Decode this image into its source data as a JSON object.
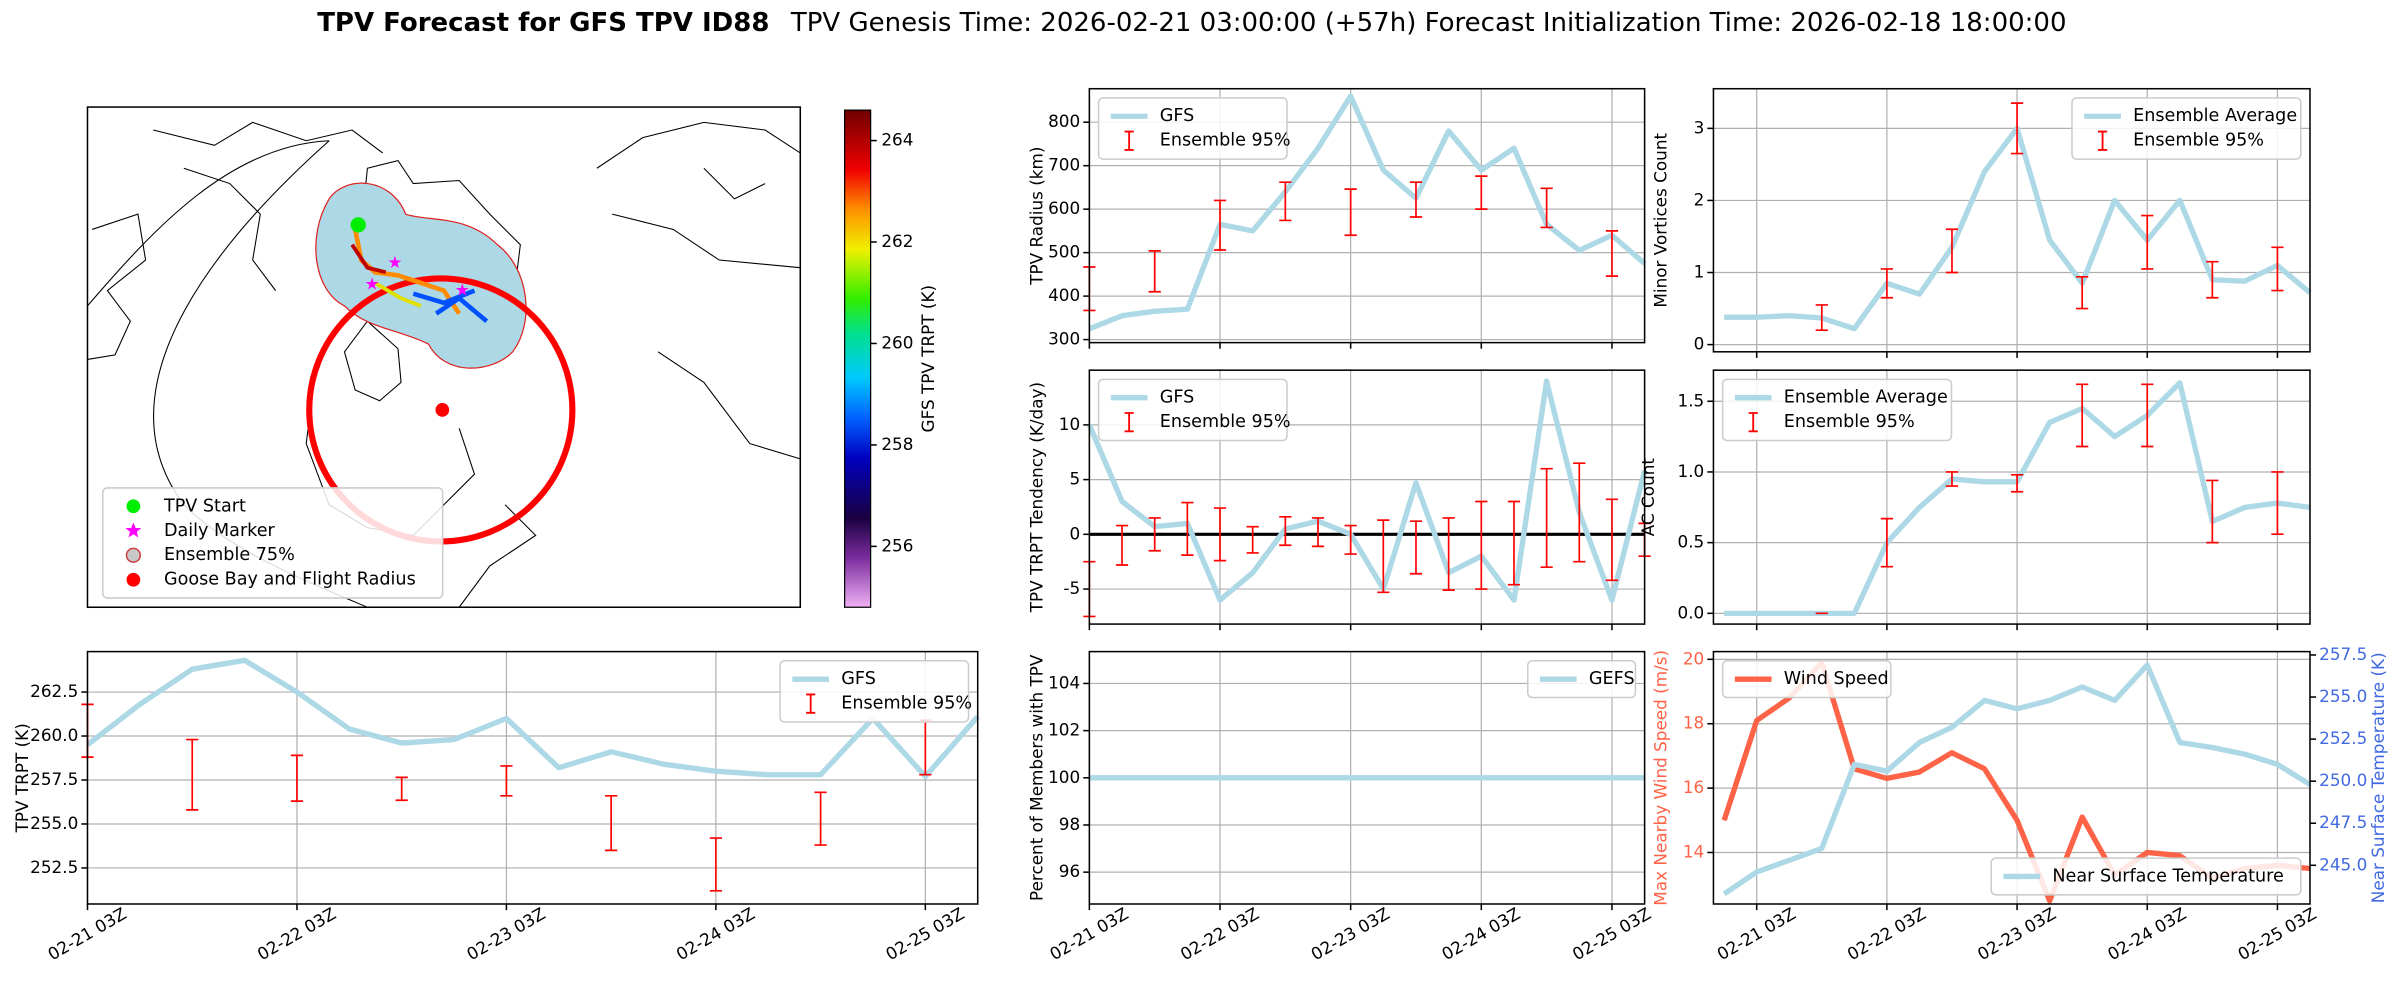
{
  "figure": {
    "title": "TPV Forecast for GFS TPV ID88",
    "subtitle": "TPV Genesis Time: 2026-02-21 03:00:00 (+57h)   Forecast Initialization Time: 2026-02-18 18:00:00"
  },
  "chart_data": [
    {
      "type": "map",
      "legend": [
        {
          "label": "TPV Start",
          "color": "#00ee00",
          "marker": "circle"
        },
        {
          "label": "Daily Marker",
          "color": "#ff00ff",
          "marker": "star"
        },
        {
          "label": "Ensemble 75%",
          "color": "#c8c8c8",
          "marker": "ring"
        },
        {
          "label": "Goose Bay and Flight Radius",
          "color": "#ff0000",
          "marker": "circle"
        }
      ],
      "colorbar": {
        "label": "GFS TPV TRPT (K)",
        "clim": [
          254.8,
          264.6
        ],
        "ticks": [
          256,
          258,
          260,
          262,
          264
        ]
      }
    },
    {
      "type": "line",
      "ylabel": "TPV TRPT (K)",
      "categories": [
        "02-21 03Z",
        null,
        null,
        null,
        "02-22 03Z",
        null,
        null,
        null,
        "02-23 03Z",
        null,
        null,
        null,
        "02-24 03Z",
        null,
        null,
        null,
        "02-25 03Z",
        null
      ],
      "series": [
        {
          "name": "GFS",
          "color": "#add8e6",
          "values": [
            259.5,
            261.8,
            263.8,
            264.3,
            262.5,
            260.4,
            259.6,
            259.8,
            261.0,
            258.2,
            259.1,
            258.4,
            258.0,
            257.8,
            257.8,
            261.0,
            257.7,
            261.1
          ]
        },
        {
          "name": "Ensemble 95%",
          "color": "#ff0000",
          "values": [
            260.3,
            null,
            257.8,
            null,
            257.6,
            null,
            257.0,
            null,
            257.45,
            null,
            255.05,
            null,
            252.7,
            null,
            255.3,
            null,
            259.35,
            null
          ],
          "errors": [
            1.5,
            null,
            2.0,
            null,
            1.3,
            null,
            0.65,
            null,
            0.85,
            null,
            1.55,
            null,
            1.5,
            null,
            1.5,
            null,
            1.55,
            null
          ]
        }
      ],
      "ylim": [
        250.45,
        264.8
      ],
      "yticks": [
        252.5,
        {
          "value": 255,
          "label": "255.0"
        },
        257.5,
        {
          "value": 260,
          "label": "260.0"
        },
        262.5
      ],
      "grid": true,
      "legend": "upper right"
    },
    {
      "type": "line",
      "ylabel": "TPV Radius (km)",
      "series": [
        {
          "name": "GFS",
          "color": "#add8e6",
          "values": [
            325,
            355,
            365,
            370,
            565,
            550,
            640,
            740,
            860,
            690,
            625,
            780,
            690,
            740,
            565,
            505,
            540,
            475
          ]
        },
        {
          "name": "Ensemble 95%",
          "color": "#ff0000",
          "values": [
            417,
            null,
            457,
            null,
            563,
            null,
            618,
            null,
            593,
            null,
            622,
            null,
            638,
            null,
            603,
            null,
            498,
            null
          ],
          "errors": [
            50,
            null,
            47,
            null,
            57,
            null,
            44,
            null,
            53,
            null,
            40,
            null,
            38,
            null,
            45,
            null,
            52,
            null
          ]
        }
      ],
      "ylim": [
        293,
        877
      ],
      "yticks": [
        300,
        400,
        500,
        600,
        700,
        800
      ],
      "grid": true,
      "legend": "upper left"
    },
    {
      "type": "line",
      "ylabel": "TPV TRPT Tendency (K/day)",
      "series": [
        {
          "name": "GFS",
          "color": "#add8e6",
          "values": [
            10,
            3,
            0.7,
            1,
            -6,
            -3.5,
            0.5,
            1.2,
            0,
            -5,
            4.7,
            -3.5,
            -2,
            -6,
            14,
            2,
            -6,
            5.8
          ]
        },
        {
          "name": "Ensemble 95%",
          "color": "#ff0000",
          "values": [
            -5,
            -1,
            0,
            0.5,
            0,
            -0.5,
            0.3,
            0.2,
            -0.5,
            -2,
            -1.2,
            -1.8,
            -1,
            -0.8,
            1.5,
            2,
            -0.5,
            -0.5
          ],
          "errors": [
            2.5,
            1.8,
            1.5,
            2.4,
            2.4,
            1.2,
            1.3,
            1.3,
            1.3,
            3.3,
            2.4,
            3.3,
            4,
            3.8,
            4.5,
            4.5,
            3.7,
            1.5
          ]
        }
      ],
      "ylim": [
        -8.2,
        15
      ],
      "yticks": [
        -5,
        0,
        5,
        10
      ],
      "hline": 0,
      "grid": true,
      "legend": "upper left"
    },
    {
      "type": "line",
      "ylabel": "Percent of Members with TPV",
      "categories": [
        "02-21 03Z",
        null,
        null,
        null,
        "02-22 03Z",
        null,
        null,
        null,
        "02-23 03Z",
        null,
        null,
        null,
        "02-24 03Z",
        null,
        null,
        null,
        "02-25 03Z",
        null
      ],
      "series": [
        {
          "name": "GEFS",
          "color": "#add8e6",
          "values": [
            100,
            100,
            100,
            100,
            100,
            100,
            100,
            100,
            100,
            100,
            100,
            100,
            100,
            100,
            100,
            100,
            100,
            100
          ]
        }
      ],
      "ylim": [
        94.65,
        105.35
      ],
      "yticks": [
        96,
        98,
        100,
        102,
        104
      ],
      "grid": true,
      "legend": "upper right"
    },
    {
      "type": "line",
      "ylabel": "Minor Vortices Count",
      "series": [
        {
          "name": "Ensemble Average",
          "color": "#add8e6",
          "values": [
            0.38,
            0.38,
            0.4,
            0.37,
            0.22,
            0.85,
            0.7,
            1.35,
            2.4,
            3.0,
            1.45,
            0.85,
            2.0,
            1.45,
            2.0,
            0.9,
            0.88,
            1.1,
            0.72
          ]
        },
        {
          "name": "Ensemble 95%",
          "color": "#ff0000",
          "values": [
            null,
            null,
            null,
            0.375,
            null,
            0.85,
            null,
            1.3,
            null,
            3.0,
            null,
            0.72,
            null,
            1.42,
            null,
            0.9,
            null,
            1.05,
            null
          ],
          "errors": [
            null,
            null,
            null,
            0.175,
            null,
            0.2,
            null,
            0.3,
            null,
            0.35,
            null,
            0.22,
            null,
            0.37,
            null,
            0.25,
            null,
            0.3,
            null
          ]
        }
      ],
      "ylim": [
        -0.1,
        3.55
      ],
      "yticks": [
        0,
        1,
        2,
        3
      ],
      "grid": true,
      "legend": "upper right"
    },
    {
      "type": "line",
      "ylabel": "AC Count",
      "series": [
        {
          "name": "Ensemble Average",
          "color": "#add8e6",
          "values": [
            0,
            0,
            0,
            0,
            0,
            0.5,
            0.75,
            0.95,
            0.93,
            0.93,
            1.35,
            1.45,
            1.25,
            1.4,
            1.63,
            0.65,
            0.75,
            0.78,
            0.75
          ]
        },
        {
          "name": "Ensemble 95%",
          "color": "#ff0000",
          "values": [
            null,
            null,
            null,
            0,
            null,
            0.5,
            null,
            0.95,
            null,
            0.92,
            null,
            1.4,
            null,
            1.4,
            null,
            0.72,
            null,
            0.78,
            null
          ],
          "errors": [
            null,
            null,
            null,
            0,
            null,
            0.17,
            null,
            0.05,
            null,
            0.06,
            null,
            0.22,
            null,
            0.22,
            null,
            0.22,
            null,
            0.22,
            null
          ]
        }
      ],
      "ylim": [
        -0.076,
        1.72
      ],
      "yticks": [
        {
          "value": 0,
          "label": "0.0"
        },
        0.5,
        {
          "value": 1,
          "label": "1.0"
        },
        1.5
      ],
      "grid": true,
      "legend": "upper left"
    },
    {
      "type": "line",
      "ylabel": "Max Nearby Wind Speed (m/s)",
      "y2label": "Near Surface Temperature (K)",
      "ylabel_color": "#ff6347",
      "y2label_color": "#4169e1",
      "categories": [
        null,
        "02-21 03Z",
        null,
        null,
        null,
        "02-22 03Z",
        null,
        null,
        null,
        "02-23 03Z",
        null,
        null,
        null,
        "02-24 03Z",
        null,
        null,
        null,
        "02-25 03Z",
        null
      ],
      "series": [
        {
          "name": "Wind Speed",
          "color": "#ff6347",
          "legend": "upper left",
          "values": [
            15,
            18.1,
            18.8,
            19.9,
            16.6,
            16.3,
            16.5,
            17.1,
            16.6,
            15.0,
            12.5,
            15.1,
            13.3,
            14.0,
            13.9,
            13.2,
            13.5,
            13.6,
            13.5
          ]
        },
        {
          "name": "Near Surface Temperature",
          "color": "#add8e6",
          "axis": "y2",
          "legend": "lower right",
          "values": [
            243.3,
            244.6,
            245.3,
            246.0,
            251.0,
            250.6,
            252.3,
            253.2,
            254.8,
            254.3,
            254.8,
            255.6,
            254.8,
            256.9,
            252.3,
            252.0,
            251.6,
            251.0,
            249.8
          ]
        }
      ],
      "ylim": [
        12.4,
        20.24
      ],
      "yticks": [
        14,
        16,
        18,
        20
      ],
      "y2lim": [
        242.7,
        257.7
      ],
      "y2ticks": [
        {
          "value": 245,
          "label": "245.0"
        },
        247.5,
        {
          "value": 250,
          "label": "250.0"
        },
        252.5,
        {
          "value": 255,
          "label": "255.0"
        },
        257.5
      ],
      "grid": true
    }
  ]
}
